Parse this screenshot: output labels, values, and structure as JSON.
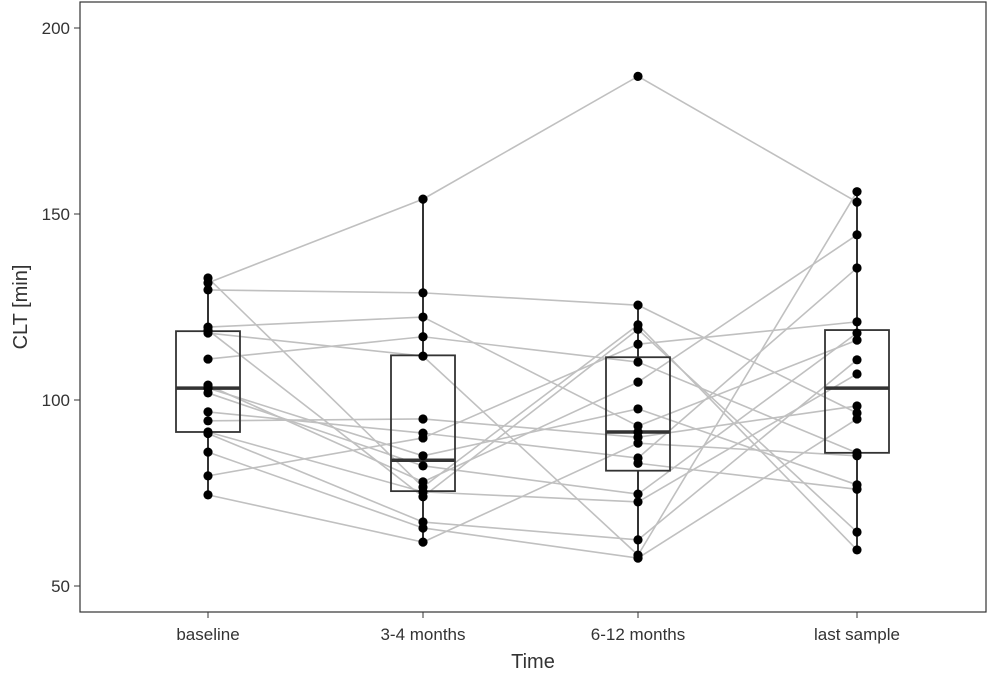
{
  "chart_data": {
    "type": "box",
    "overlay": "paired points connected by lines per subject",
    "xlabel": "Time",
    "ylabel": "CLT [min]",
    "categories": [
      "baseline",
      "3-4 months",
      "6-12 months",
      "last sample"
    ],
    "ylim": [
      42,
      203
    ],
    "yticks": [
      50,
      100,
      150,
      200
    ],
    "grid": false,
    "colors": {
      "points": "#000000",
      "lines": "#c0c0c0",
      "box": "#333333"
    },
    "boxes": [
      {
        "category": "baseline",
        "whisker_low": 74.5,
        "q1": 91.4,
        "median": 103.2,
        "q3": 118.5,
        "whisker_high": 132.8
      },
      {
        "category": "3-4 months",
        "whisker_low": 61.8,
        "q1": 75.5,
        "median": 83.8,
        "q3": 112,
        "whisker_high": 154
      },
      {
        "category": "6-12 months",
        "whisker_low": 57.5,
        "q1": 81,
        "median": 91.4,
        "q3": 111.5,
        "whisker_high": 125.5
      },
      {
        "category": "last sample",
        "whisker_low": 59.7,
        "q1": 85.8,
        "median": 103.2,
        "q3": 118.8,
        "whisker_high": 156
      }
    ],
    "subjects": [
      [
        131.5,
        154,
        187,
        153.2
      ],
      [
        132.8,
        76.6,
        120.2,
        59.7
      ],
      [
        129.6,
        128.8,
        125.5,
        96.5
      ],
      [
        119.6,
        122.3,
        93,
        116.1
      ],
      [
        118.8,
        74,
        119,
        64.5
      ],
      [
        118,
        111.8,
        58.3,
        156
      ],
      [
        111,
        117,
        110.2,
        85.8
      ],
      [
        104,
        78,
        104.8,
        144.4
      ],
      [
        103.2,
        85,
        97.6,
        77.2
      ],
      [
        101.9,
        82.3,
        74.7,
        118
      ],
      [
        96.8,
        91.1,
        84.4,
        135.5
      ],
      [
        94.4,
        94.9,
        90,
        98.4
      ],
      [
        91.4,
        75.3,
        72.6,
        107
      ],
      [
        91,
        67.2,
        62.4,
        110.8
      ],
      [
        86,
        65.6,
        57.5,
        94.9
      ],
      [
        79.6,
        89.8,
        115,
        121
      ],
      [
        74.5,
        61.8,
        88.4,
        85
      ],
      [
        null,
        null,
        83,
        76
      ],
      [
        null,
        null,
        91.4,
        null
      ]
    ]
  }
}
